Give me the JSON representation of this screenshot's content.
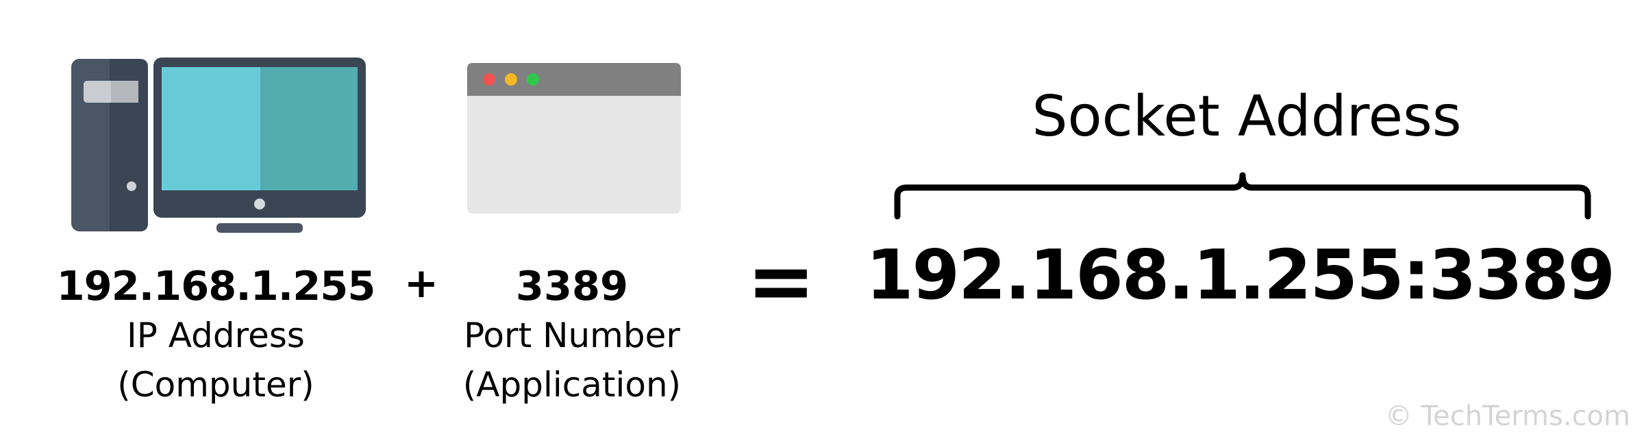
{
  "computer": {
    "value": "192.168.1.255",
    "label": "IP Address",
    "sublabel": "(Computer)"
  },
  "operator_plus": "+",
  "application": {
    "value": "3389",
    "label": "Port Number",
    "sublabel": "(Application)"
  },
  "operator_equals": "=",
  "socket": {
    "title": "Socket Address",
    "value": "192.168.1.255:3389"
  },
  "copyright": "© TechTerms.com",
  "icons": {
    "computer": "desktop-computer-icon",
    "application": "application-window-icon",
    "brace": "curly-brace-icon"
  },
  "colors": {
    "tower_dark": "#3b4654",
    "tower_light": "#4a5565",
    "screen_light": "#67ccd8",
    "screen_dark": "#53acb0",
    "window_titlebar": "#808080",
    "window_body": "#e6e6e6",
    "dot_red": "#f2514f",
    "dot_yellow": "#f5b724",
    "dot_green": "#2fc84c",
    "text": "#000000",
    "watermark": "#d4d4d4"
  }
}
